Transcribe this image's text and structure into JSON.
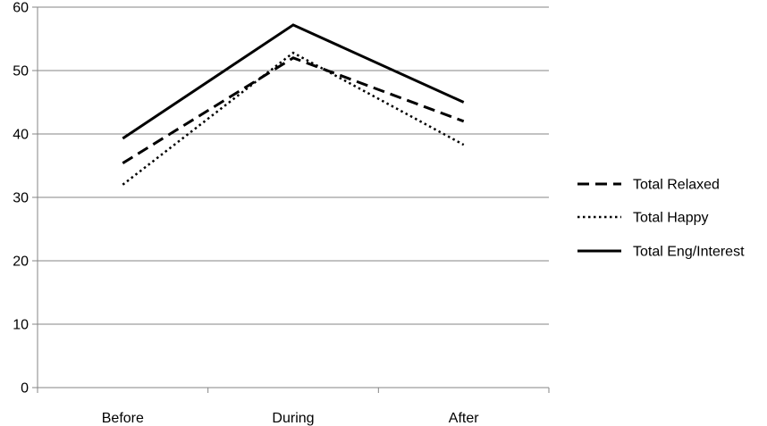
{
  "chart_data": {
    "type": "line",
    "title": "",
    "xlabel": "",
    "ylabel": "",
    "categories": [
      "Before",
      "During",
      "After"
    ],
    "ylim": [
      0,
      60
    ],
    "yticks": [
      0,
      10,
      20,
      30,
      40,
      50,
      60
    ],
    "grid": "horizontal",
    "legend_position": "right",
    "series": [
      {
        "name": "Total Relaxed",
        "values": [
          35.4,
          52.0,
          42.0
        ],
        "style": "dashed",
        "color": "#000000"
      },
      {
        "name": "Total Happy",
        "values": [
          32.0,
          52.8,
          38.3
        ],
        "style": "dotted",
        "color": "#000000"
      },
      {
        "name": "Total Eng/Interest",
        "values": [
          39.3,
          57.2,
          45.0
        ],
        "style": "solid",
        "color": "#000000"
      }
    ]
  }
}
